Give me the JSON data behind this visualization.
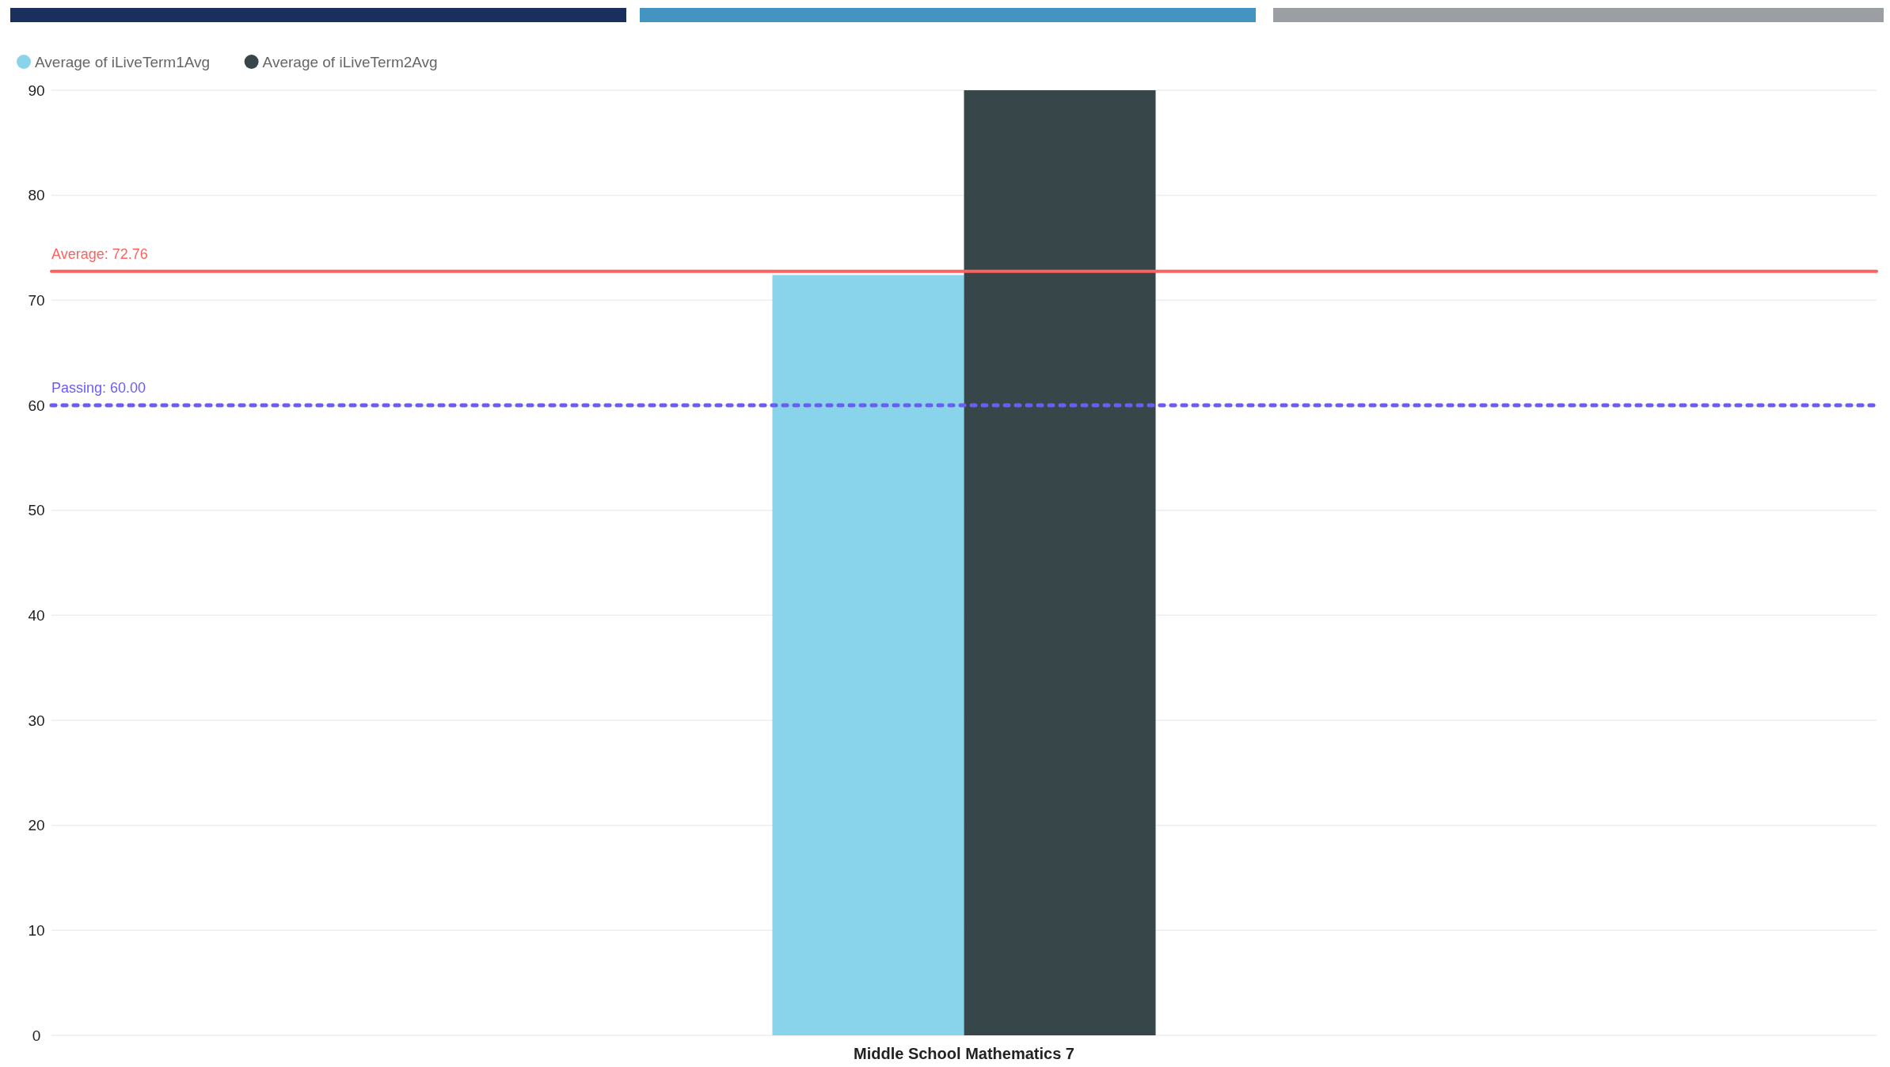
{
  "chart_data": {
    "type": "bar",
    "categories": [
      "Middle School Mathematics 7"
    ],
    "series": [
      {
        "name": "Average of iLiveTerm1Avg",
        "color": "#8ad4eb",
        "values": [
          72.4
        ]
      },
      {
        "name": "Average of iLiveTerm2Avg",
        "color": "#374649",
        "values": [
          90
        ]
      }
    ],
    "ylim": [
      0,
      90
    ],
    "yticks": [
      0,
      10,
      20,
      30,
      40,
      50,
      60,
      70,
      80,
      90
    ],
    "grid": "y",
    "legend": "top left",
    "ref_lines": [
      {
        "axis": "y",
        "value": 72.76,
        "label": "Average: 72.76",
        "color": "#fd625e",
        "line_style": "solid"
      },
      {
        "axis": "y",
        "value": 60,
        "label": "Passing: 60.00",
        "color": "#6b5cf5",
        "line_style": "dotted"
      }
    ]
  }
}
